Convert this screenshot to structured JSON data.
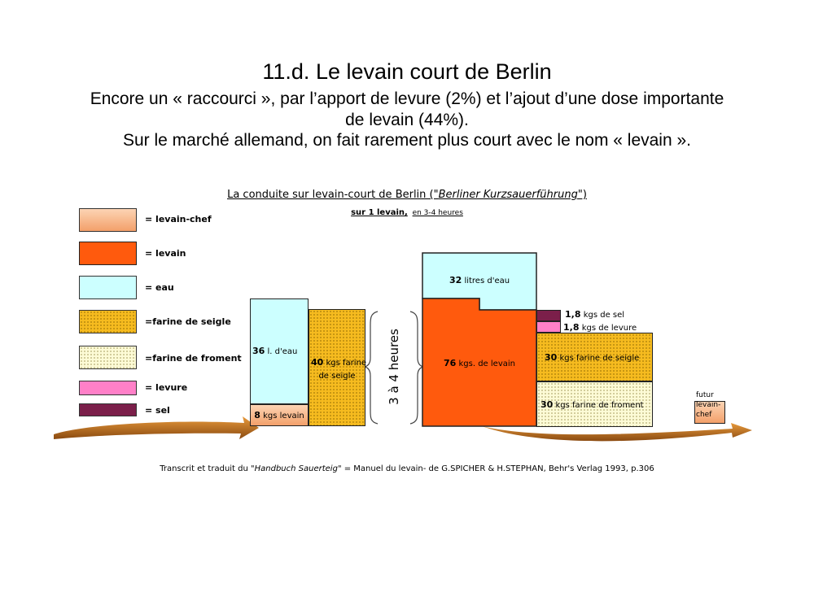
{
  "header": {
    "title": "11.d. Le levain court de Berlin",
    "subtitle_line1": "Encore un « raccourci », par l’apport de levure (2%) et l’ajout d’une dose importante",
    "subtitle_line2": "de levain (44%).",
    "subtitle_line3": "Sur le marché allemand, on fait rarement plus court avec le nom « levain »."
  },
  "diagram": {
    "title_prefix": "La conduite sur levain-court de Berlin (\"",
    "title_italic": "Berliner Kurzsauerführung",
    "title_suffix": "\")",
    "sub_bold": "sur 1 levain,",
    "sub_rest": "en 3-4 heures",
    "time_label": "3 à 4 heures"
  },
  "legend": [
    {
      "label": "= levain-chef",
      "color": "#f3a06a"
    },
    {
      "label": "= levain",
      "color": "#ff5a0d"
    },
    {
      "label": "= eau",
      "color": "#ccffff"
    },
    {
      "label": "=farine de seigle",
      "color": "#f6bb1f"
    },
    {
      "label": "=farine de froment",
      "color": "#fdfbd6"
    },
    {
      "label": "= levure",
      "color": "#ff80c8"
    },
    {
      "label": "= sel",
      "color": "#7b1f4a"
    }
  ],
  "before": {
    "eau": {
      "value": "36",
      "unit": "l. d'eau"
    },
    "levain_chef": {
      "value": "8",
      "unit": "kgs levain"
    },
    "seigle": {
      "value": "40",
      "unit": "kgs farine",
      "unit2": "de seigle"
    }
  },
  "after": {
    "eau": {
      "value": "32",
      "unit": "litres d'eau"
    },
    "levain": {
      "value": "76",
      "unit": "kgs. de levain"
    },
    "sel": {
      "value": "1,8",
      "unit": "kgs de sel"
    },
    "levure": {
      "value": "1,8",
      "unit": "kgs de levure"
    },
    "seigle": {
      "value": "30",
      "unit": "kgs farine de seigle"
    },
    "froment": {
      "value": "30",
      "unit": "kgs farine de froment"
    }
  },
  "futur": {
    "line1": "futur",
    "line2": "levain-",
    "line3": "chef"
  },
  "footer": {
    "prefix": "Transcrit et traduit du \"",
    "italic": "Handbuch Sauerteig",
    "suffix": "\" = Manuel du levain- de G.SPICHER & H.STEPHAN, Behr's Verlag 1993, p.306"
  }
}
